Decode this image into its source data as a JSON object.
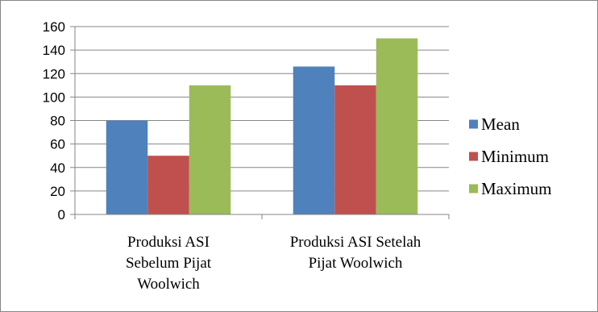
{
  "chart_data": {
    "type": "bar",
    "title": "",
    "xlabel": "",
    "ylabel": "",
    "ylim": [
      0,
      160
    ],
    "yticks": [
      0,
      20,
      40,
      60,
      80,
      100,
      120,
      140,
      160
    ],
    "grid": true,
    "legend_position": "right",
    "categories": [
      [
        "Produksi ASI",
        "Sebelum Pijat",
        "Woolwich"
      ],
      [
        "Produksi ASI Setelah",
        "Pijat Woolwich"
      ]
    ],
    "series": [
      {
        "name": "Mean",
        "color": "#4f81bd",
        "values": [
          80,
          126
        ]
      },
      {
        "name": "Minimum",
        "color": "#c0504d",
        "values": [
          50,
          110
        ]
      },
      {
        "name": "Maximum",
        "color": "#9bbb59",
        "values": [
          110,
          150
        ]
      }
    ]
  }
}
